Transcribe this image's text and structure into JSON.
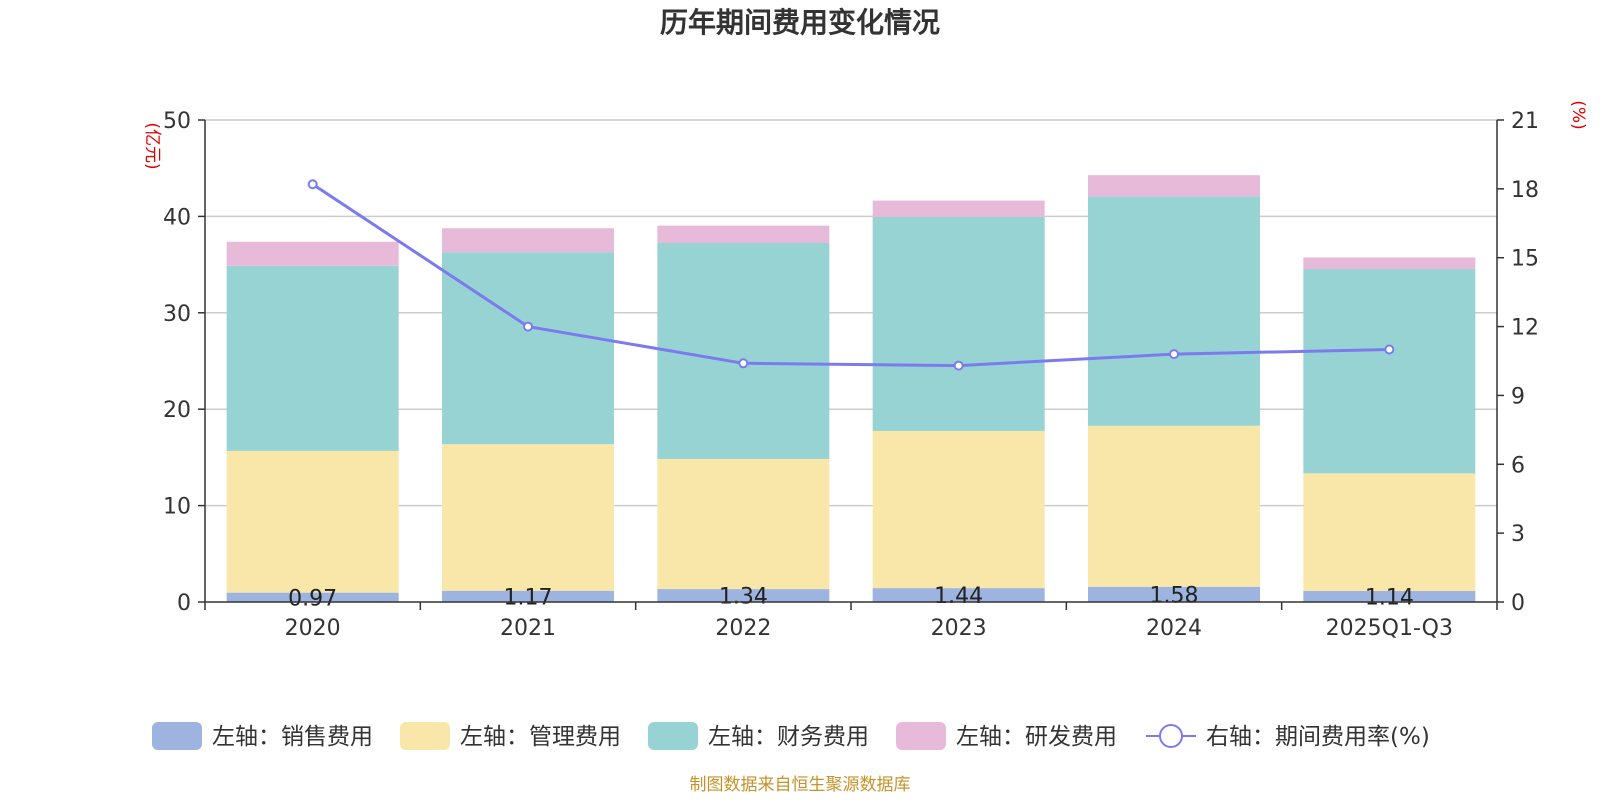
{
  "chart_data": {
    "type": "bar",
    "stacked": true,
    "title": "历年期间费用变化情况",
    "categories": [
      "2020",
      "2021",
      "2022",
      "2023",
      "2024",
      "2025Q1-Q3"
    ],
    "y_left": {
      "unit": "(亿元)",
      "ylim": [
        0,
        50
      ],
      "ticks": [
        0,
        10,
        20,
        30,
        40,
        50
      ]
    },
    "y_right": {
      "unit": "(%)",
      "ylim": [
        0,
        21
      ],
      "ticks": [
        0,
        3,
        6,
        9,
        12,
        15,
        18,
        21
      ]
    },
    "series": [
      {
        "name": "左轴：销售费用",
        "axis": "left",
        "type": "bar",
        "color": "#9db4e0",
        "values": [
          0.97,
          1.17,
          1.34,
          1.44,
          1.58,
          1.14
        ],
        "labels": [
          "0.97",
          "1.17",
          "1.34",
          "1.44",
          "1.58",
          "1.14"
        ]
      },
      {
        "name": "左轴：管理费用",
        "axis": "left",
        "type": "bar",
        "color": "#f8e7a8",
        "values": [
          14.7,
          15.2,
          13.5,
          16.3,
          16.7,
          12.2
        ]
      },
      {
        "name": "左轴：财务费用",
        "axis": "left",
        "type": "bar",
        "color": "#97d3d3",
        "values": [
          19.2,
          19.9,
          22.4,
          22.2,
          23.8,
          21.2
        ]
      },
      {
        "name": "左轴：研发费用",
        "axis": "left",
        "type": "bar",
        "color": "#e8bada",
        "values": [
          2.5,
          2.5,
          1.8,
          1.7,
          2.2,
          1.2
        ]
      },
      {
        "name": "右轴：期间费用率(%)",
        "axis": "right",
        "type": "line",
        "color": "#7b7bef",
        "values": [
          18.2,
          12.0,
          10.4,
          10.3,
          10.8,
          11.0
        ]
      }
    ],
    "grid": true,
    "legend_position": "bottom"
  },
  "footer": {
    "source": "制图数据来自恒生聚源数据库"
  }
}
